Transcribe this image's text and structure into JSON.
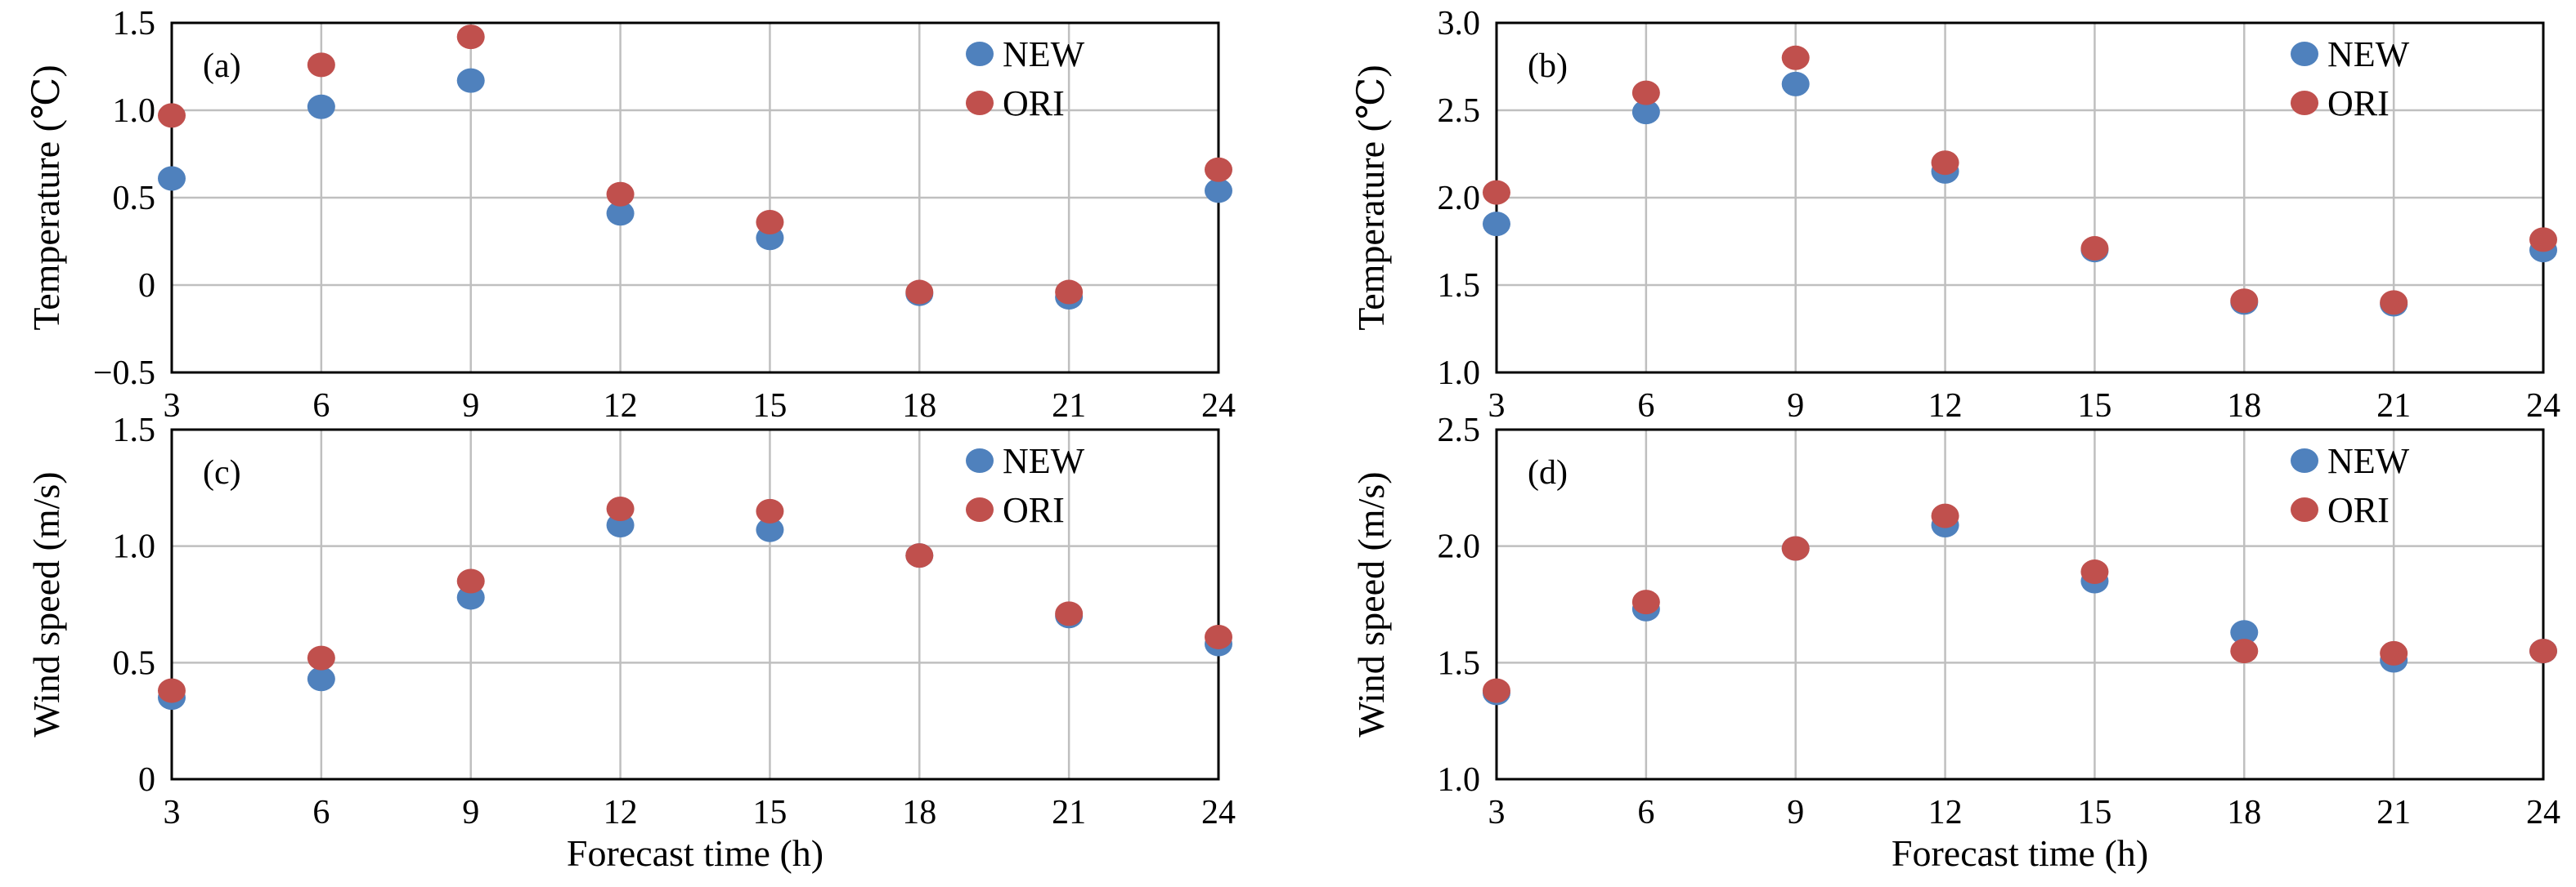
{
  "chart_data": [
    {
      "panel": "(a)",
      "type": "scatter",
      "ylabel": "Temperature (℃)",
      "xlabel": "",
      "x": [
        3,
        6,
        9,
        12,
        15,
        18,
        21,
        24
      ],
      "xlim": [
        3,
        24
      ],
      "xticks": [
        "3",
        "6",
        "9",
        "12",
        "15",
        "18",
        "21",
        "24"
      ],
      "ylim": [
        -0.5,
        1.5
      ],
      "yticks": [
        "−0.5",
        "0",
        "0.5",
        "1.0",
        "1.5"
      ],
      "yticks_values": [
        -0.5,
        0,
        0.5,
        1.0,
        1.5
      ],
      "grid": true,
      "legend_position": "top-right",
      "series": [
        {
          "name": "NEW",
          "color": "#4f81bd",
          "values": [
            0.61,
            1.02,
            1.17,
            0.41,
            0.27,
            -0.05,
            -0.07,
            0.54
          ]
        },
        {
          "name": "ORI",
          "color": "#c0504d",
          "values": [
            0.97,
            1.26,
            1.42,
            0.52,
            0.36,
            -0.04,
            -0.04,
            0.66
          ]
        }
      ]
    },
    {
      "panel": "(b)",
      "type": "scatter",
      "ylabel": "Temperature (℃)",
      "xlabel": "",
      "x": [
        3,
        6,
        9,
        12,
        15,
        18,
        21,
        24
      ],
      "xlim": [
        3,
        24
      ],
      "xticks": [
        "3",
        "6",
        "9",
        "12",
        "15",
        "18",
        "21",
        "24"
      ],
      "ylim": [
        1.0,
        3.0
      ],
      "yticks": [
        "1.0",
        "1.5",
        "2.0",
        "2.5",
        "3.0"
      ],
      "yticks_values": [
        1.0,
        1.5,
        2.0,
        2.5,
        3.0
      ],
      "grid": true,
      "legend_position": "top-right",
      "series": [
        {
          "name": "NEW",
          "color": "#4f81bd",
          "values": [
            1.85,
            2.49,
            2.65,
            2.15,
            1.7,
            1.4,
            1.39,
            1.7
          ]
        },
        {
          "name": "ORI",
          "color": "#c0504d",
          "values": [
            2.03,
            2.6,
            2.8,
            2.2,
            1.71,
            1.41,
            1.4,
            1.76
          ]
        }
      ]
    },
    {
      "panel": "(c)",
      "type": "scatter",
      "ylabel": "Wind speed (m/s)",
      "xlabel": "Forecast time (h)",
      "x": [
        3,
        6,
        9,
        12,
        15,
        18,
        21,
        24
      ],
      "xlim": [
        3,
        24
      ],
      "xticks": [
        "3",
        "6",
        "9",
        "12",
        "15",
        "18",
        "21",
        "24"
      ],
      "ylim": [
        0,
        1.5
      ],
      "yticks": [
        "0",
        "0.5",
        "1.0",
        "1.5"
      ],
      "yticks_values": [
        0,
        0.5,
        1.0,
        1.5
      ],
      "grid": true,
      "legend_position": "top-right",
      "series": [
        {
          "name": "NEW",
          "color": "#4f81bd",
          "values": [
            0.35,
            0.43,
            0.78,
            1.09,
            1.07,
            0.96,
            0.7,
            0.58
          ]
        },
        {
          "name": "ORI",
          "color": "#c0504d",
          "values": [
            0.38,
            0.52,
            0.85,
            1.16,
            1.15,
            0.96,
            0.71,
            0.61
          ]
        }
      ]
    },
    {
      "panel": "(d)",
      "type": "scatter",
      "ylabel": "Wind speed (m/s)",
      "xlabel": "Forecast time (h)",
      "x": [
        3,
        6,
        9,
        12,
        15,
        18,
        21,
        24
      ],
      "xlim": [
        3,
        24
      ],
      "xticks": [
        "3",
        "6",
        "9",
        "12",
        "15",
        "18",
        "21",
        "24"
      ],
      "ylim": [
        1.0,
        2.5
      ],
      "yticks": [
        "1.0",
        "1.5",
        "2.0",
        "2.5"
      ],
      "yticks_values": [
        1.0,
        1.5,
        2.0,
        2.5
      ],
      "grid": true,
      "legend_position": "top-right",
      "series": [
        {
          "name": "NEW",
          "color": "#4f81bd",
          "values": [
            1.37,
            1.73,
            1.99,
            2.09,
            1.85,
            1.63,
            1.51,
            1.55
          ]
        },
        {
          "name": "ORI",
          "color": "#c0504d",
          "values": [
            1.38,
            1.76,
            1.99,
            2.13,
            1.89,
            1.55,
            1.54,
            1.55
          ]
        }
      ]
    }
  ]
}
